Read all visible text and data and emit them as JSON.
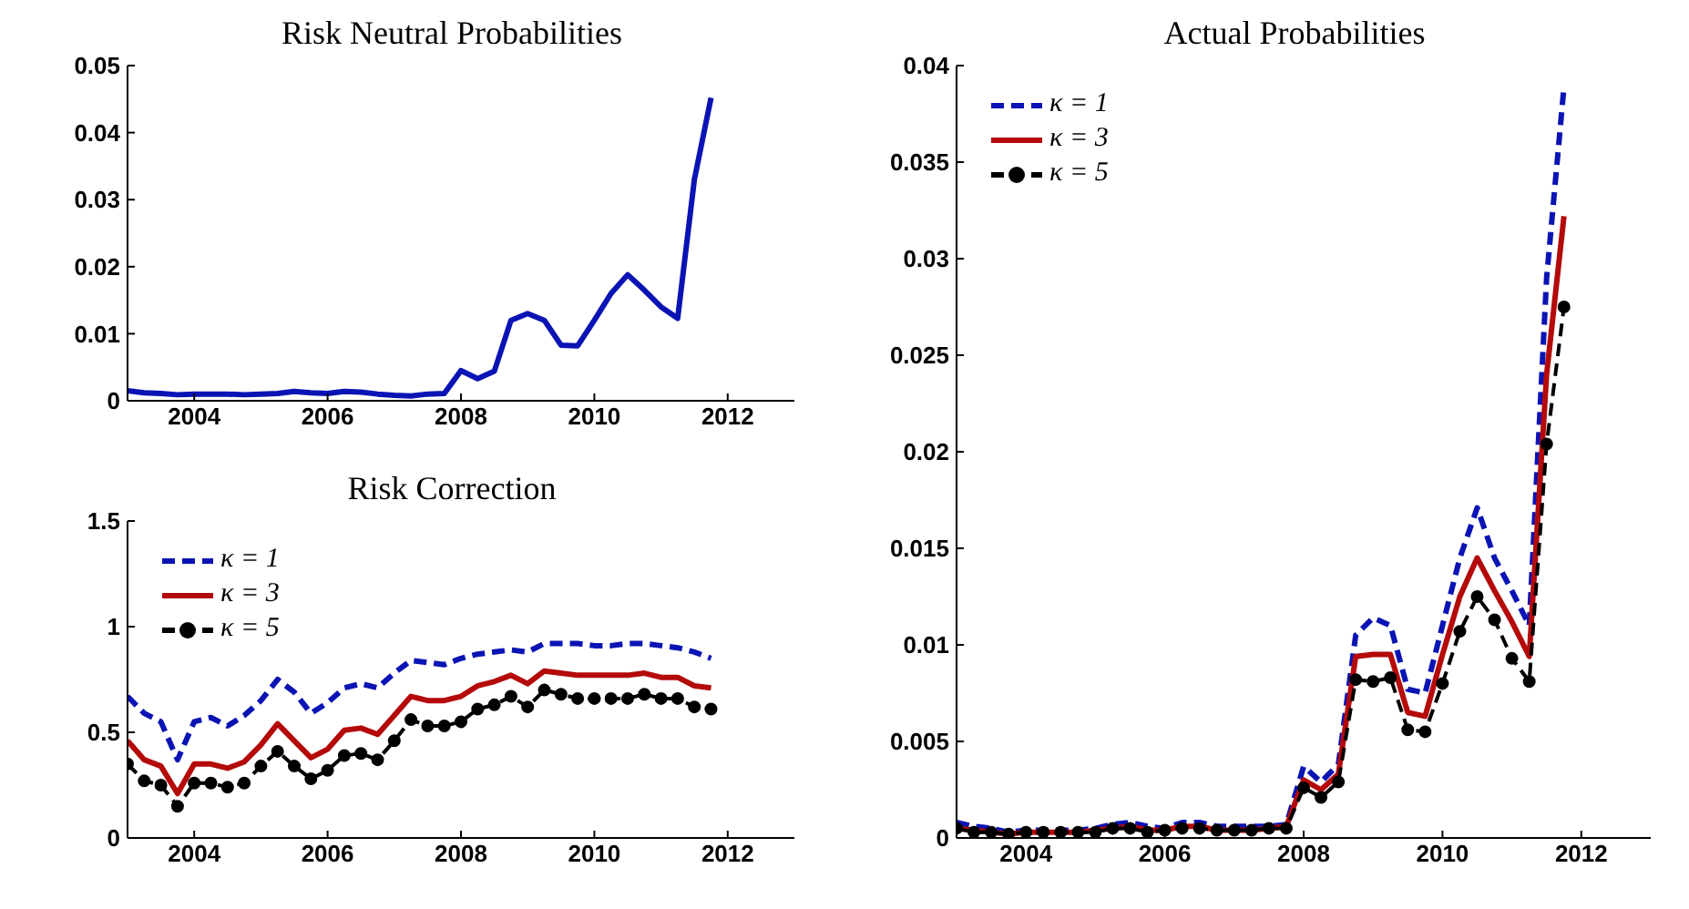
{
  "chart_data": [
    {
      "type": "line",
      "title": "Risk Neutral Probabilities",
      "x": [
        2003,
        2003.25,
        2003.5,
        2003.75,
        2004,
        2004.25,
        2004.5,
        2004.75,
        2005,
        2005.25,
        2005.5,
        2005.75,
        2006,
        2006.25,
        2006.5,
        2006.75,
        2007,
        2007.25,
        2007.5,
        2007.75,
        2008,
        2008.25,
        2008.5,
        2008.75,
        2009,
        2009.25,
        2009.5,
        2009.75,
        2010,
        2010.25,
        2010.5,
        2010.75,
        2011,
        2011.25,
        2011.5,
        2011.75
      ],
      "series": [
        {
          "color": "#0a14b4",
          "line_style": "solid",
          "values": [
            0.0015,
            0.0012,
            0.0011,
            0.0009,
            0.001,
            0.001,
            0.001,
            0.0009,
            0.001,
            0.0011,
            0.0014,
            0.0012,
            0.0011,
            0.0014,
            0.0013,
            0.001,
            0.0008,
            0.0007,
            0.001,
            0.0011,
            0.0045,
            0.0033,
            0.0044,
            0.012,
            0.013,
            0.012,
            0.0083,
            0.0082,
            0.012,
            0.016,
            0.0188,
            0.0165,
            0.014,
            0.0123,
            0.033,
            0.0452
          ]
        }
      ],
      "xlim": [
        2003,
        2013
      ],
      "xticks": [
        2004,
        2006,
        2008,
        2010,
        2012
      ],
      "ylim": [
        0,
        0.05
      ],
      "yticks": [
        0,
        0.01,
        0.02,
        0.03,
        0.04,
        0.05
      ],
      "grid": false,
      "legend": false
    },
    {
      "type": "line",
      "title": "Risk Correction",
      "x": [
        2003,
        2003.25,
        2003.5,
        2003.75,
        2004,
        2004.25,
        2004.5,
        2004.75,
        2005,
        2005.25,
        2005.5,
        2005.75,
        2006,
        2006.25,
        2006.5,
        2006.75,
        2007,
        2007.25,
        2007.5,
        2007.75,
        2008,
        2008.25,
        2008.5,
        2008.75,
        2009,
        2009.25,
        2009.5,
        2009.75,
        2010,
        2010.25,
        2010.5,
        2010.75,
        2011,
        2011.25,
        2011.5,
        2011.75
      ],
      "series": [
        {
          "name": "κ = 1",
          "color": "#0a14b4",
          "line_style": "dashed",
          "marker": "none",
          "values": [
            0.67,
            0.59,
            0.55,
            0.37,
            0.55,
            0.57,
            0.53,
            0.58,
            0.65,
            0.75,
            0.69,
            0.59,
            0.64,
            0.71,
            0.73,
            0.71,
            0.78,
            0.84,
            0.83,
            0.82,
            0.85,
            0.87,
            0.88,
            0.89,
            0.88,
            0.92,
            0.92,
            0.92,
            0.91,
            0.91,
            0.92,
            0.92,
            0.91,
            0.9,
            0.88,
            0.85
          ]
        },
        {
          "name": "κ = 3",
          "color": "#b40a0a",
          "line_style": "solid",
          "marker": "none",
          "values": [
            0.46,
            0.37,
            0.34,
            0.21,
            0.35,
            0.35,
            0.33,
            0.36,
            0.44,
            0.54,
            0.46,
            0.38,
            0.42,
            0.51,
            0.52,
            0.49,
            0.58,
            0.67,
            0.65,
            0.65,
            0.67,
            0.72,
            0.74,
            0.77,
            0.73,
            0.79,
            0.78,
            0.77,
            0.77,
            0.77,
            0.77,
            0.78,
            0.76,
            0.76,
            0.72,
            0.71
          ]
        },
        {
          "name": "κ = 5",
          "color": "#000000",
          "line_style": "dashed",
          "marker": "circle",
          "values": [
            0.35,
            0.27,
            0.25,
            0.15,
            0.26,
            0.26,
            0.24,
            0.26,
            0.34,
            0.41,
            0.34,
            0.28,
            0.32,
            0.39,
            0.4,
            0.37,
            0.46,
            0.56,
            0.53,
            0.53,
            0.55,
            0.61,
            0.63,
            0.67,
            0.62,
            0.7,
            0.68,
            0.66,
            0.66,
            0.66,
            0.66,
            0.68,
            0.66,
            0.66,
            0.62,
            0.61
          ]
        }
      ],
      "xlim": [
        2003,
        2013
      ],
      "xticks": [
        2004,
        2006,
        2008,
        2010,
        2012
      ],
      "ylim": [
        0,
        1.5
      ],
      "yticks": [
        0,
        0.5,
        1,
        1.5
      ],
      "grid": false,
      "legend": "top left"
    },
    {
      "type": "line",
      "title": "Actual Probabilities",
      "x": [
        2003,
        2003.25,
        2003.5,
        2003.75,
        2004,
        2004.25,
        2004.5,
        2004.75,
        2005,
        2005.25,
        2005.5,
        2005.75,
        2006,
        2006.25,
        2006.5,
        2006.75,
        2007,
        2007.25,
        2007.5,
        2007.75,
        2008,
        2008.25,
        2008.5,
        2008.75,
        2009,
        2009.25,
        2009.5,
        2009.75,
        2010,
        2010.25,
        2010.5,
        2010.75,
        2011,
        2011.25,
        2011.5,
        2011.75
      ],
      "series": [
        {
          "name": "κ = 1",
          "color": "#0a14b4",
          "line_style": "dashed",
          "marker": "none",
          "values": [
            0.0008,
            0.0006,
            0.0005,
            0.0003,
            0.0004,
            0.0004,
            0.0004,
            0.0004,
            0.0005,
            0.0007,
            0.0008,
            0.0006,
            0.0005,
            0.0008,
            0.0008,
            0.0006,
            0.0006,
            0.0006,
            0.0006,
            0.0007,
            0.0037,
            0.0029,
            0.0038,
            0.0105,
            0.0114,
            0.011,
            0.0077,
            0.0075,
            0.011,
            0.0145,
            0.0171,
            0.0145,
            0.0128,
            0.011,
            0.029,
            0.0389
          ]
        },
        {
          "name": "κ = 3",
          "color": "#b40a0a",
          "line_style": "solid",
          "marker": "none",
          "values": [
            0.0005,
            0.0004,
            0.0003,
            0.0002,
            0.0003,
            0.0003,
            0.0003,
            0.0003,
            0.0004,
            0.0005,
            0.0006,
            0.0004,
            0.0004,
            0.0006,
            0.0006,
            0.0004,
            0.0004,
            0.0004,
            0.0005,
            0.0006,
            0.003,
            0.0025,
            0.0033,
            0.0094,
            0.0095,
            0.0095,
            0.0065,
            0.0063,
            0.0095,
            0.0125,
            0.0145,
            0.0128,
            0.0112,
            0.0094,
            0.024,
            0.0322
          ]
        },
        {
          "name": "κ = 5",
          "color": "#000000",
          "line_style": "dashed",
          "marker": "circle",
          "values": [
            0.0005,
            0.0003,
            0.0003,
            0.0002,
            0.0003,
            0.0003,
            0.0003,
            0.0003,
            0.0003,
            0.0005,
            0.0005,
            0.0003,
            0.0004,
            0.0005,
            0.0005,
            0.0004,
            0.0004,
            0.0004,
            0.0005,
            0.0005,
            0.0026,
            0.0021,
            0.0029,
            0.0082,
            0.0081,
            0.0083,
            0.0056,
            0.0055,
            0.008,
            0.0107,
            0.0125,
            0.0113,
            0.0093,
            0.0081,
            0.0204,
            0.0275
          ]
        }
      ],
      "xlim": [
        2003,
        2013
      ],
      "xticks": [
        2004,
        2006,
        2008,
        2010,
        2012
      ],
      "ylim": [
        0,
        0.04
      ],
      "yticks": [
        0,
        0.005,
        0.01,
        0.015,
        0.02,
        0.025,
        0.03,
        0.035,
        0.04
      ],
      "grid": false,
      "legend": "top left"
    }
  ]
}
